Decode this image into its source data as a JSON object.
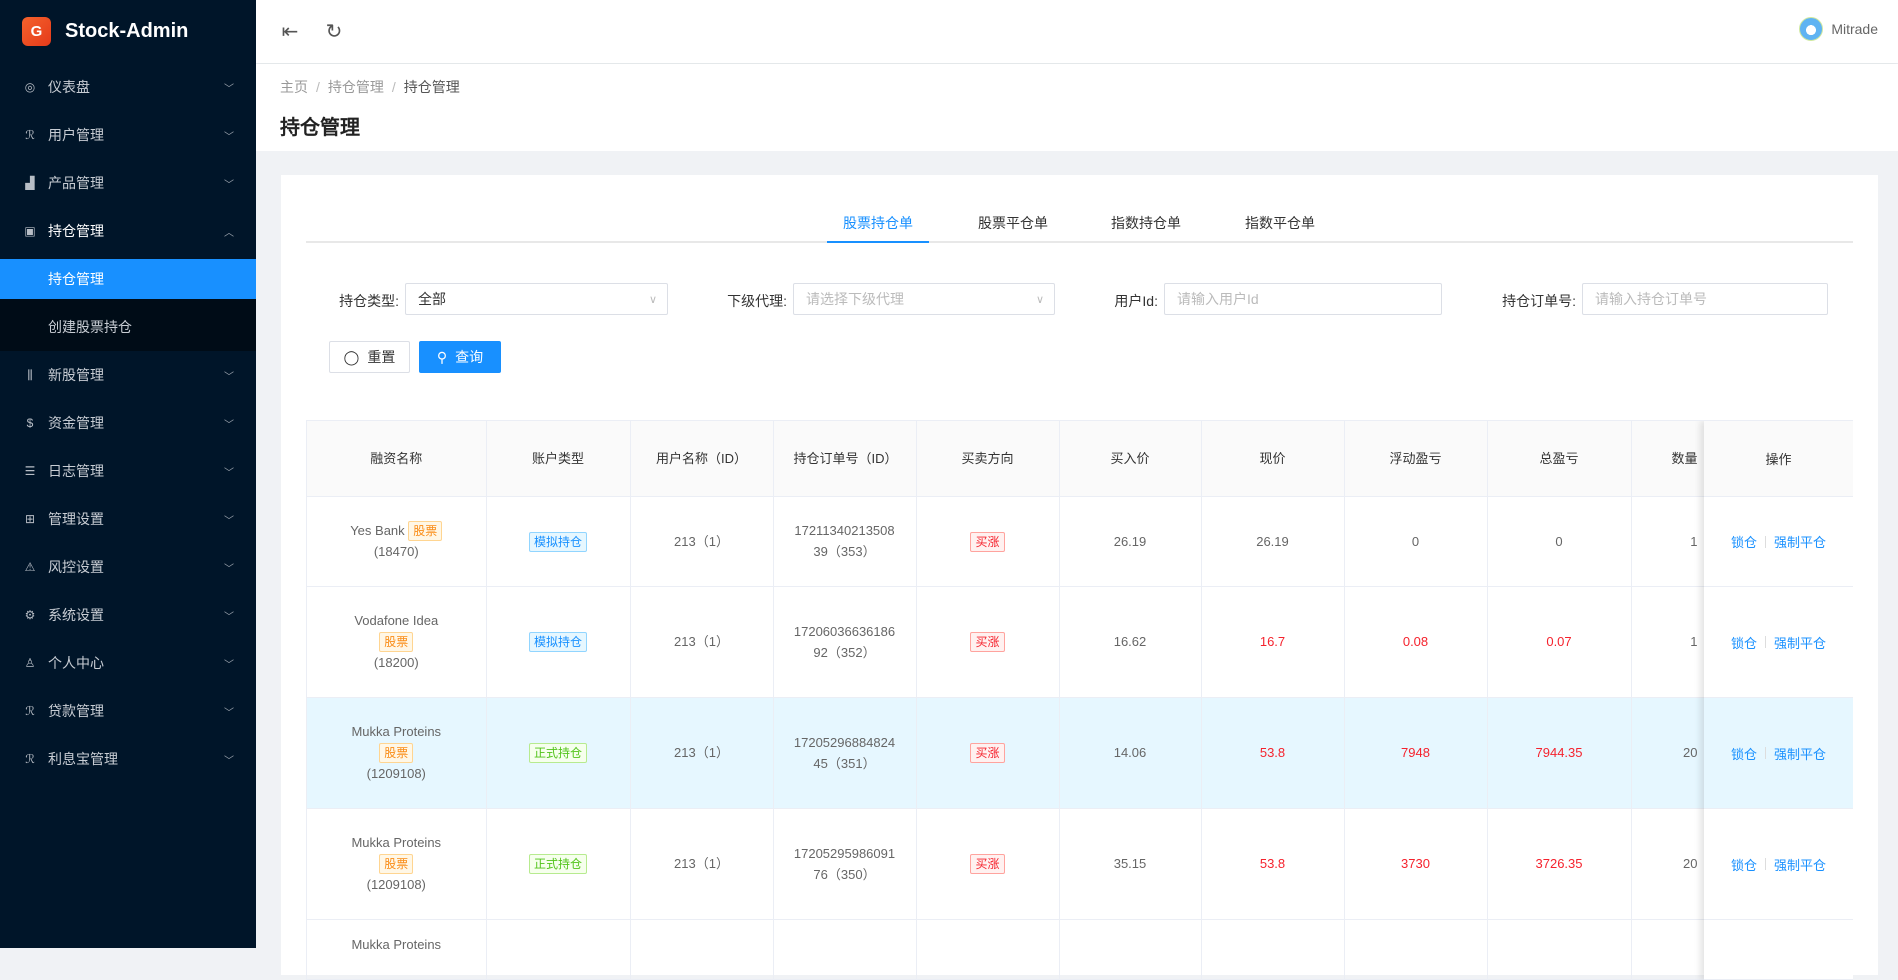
{
  "app": {
    "logo_text": "Stock-Admin",
    "logo_glyph": "G"
  },
  "sidebar": {
    "items": [
      {
        "label": "仪表盘",
        "icon": "dashboard-icon"
      },
      {
        "label": "用户管理",
        "icon": "user-group-icon"
      },
      {
        "label": "产品管理",
        "icon": "chart-icon"
      },
      {
        "label": "持仓管理",
        "icon": "position-icon",
        "open": true,
        "children": [
          {
            "label": "持仓管理",
            "active": true
          },
          {
            "label": "创建股票持仓"
          }
        ]
      },
      {
        "label": "新股管理",
        "icon": "sliders-icon"
      },
      {
        "label": "资金管理",
        "icon": "dollar-icon"
      },
      {
        "label": "日志管理",
        "icon": "log-icon"
      },
      {
        "label": "管理设置",
        "icon": "settings-box-icon"
      },
      {
        "label": "风控设置",
        "icon": "warning-icon"
      },
      {
        "label": "系统设置",
        "icon": "gear-icon"
      },
      {
        "label": "个人中心",
        "icon": "person-icon"
      },
      {
        "label": "贷款管理",
        "icon": "loan-icon"
      },
      {
        "label": "利息宝管理",
        "icon": "interest-icon"
      }
    ]
  },
  "topbar": {
    "username": "Mitrade"
  },
  "breadcrumb": [
    "主页",
    "持仓管理",
    "持仓管理"
  ],
  "page_title": "持仓管理",
  "tabs": [
    {
      "label": "股票持仓单",
      "active": true
    },
    {
      "label": "股票平仓单"
    },
    {
      "label": "指数持仓单"
    },
    {
      "label": "指数平仓单"
    }
  ],
  "filters": {
    "type_label": "持仓类型:",
    "type_value": "全部",
    "agent_label": "下级代理:",
    "agent_placeholder": "请选择下级代理",
    "userid_label": "用户Id:",
    "userid_placeholder": "请输入用户Id",
    "order_label": "持仓订单号:",
    "order_placeholder": "请输入持仓订单号",
    "reset": "重置",
    "query": "查询"
  },
  "table": {
    "columns": [
      "融资名称",
      "账户类型",
      "用户名称（ID）",
      "持仓订单号（ID）",
      "买卖方向",
      "买入价",
      "现价",
      "浮动盈亏",
      "总盈亏",
      "数量",
      "操作"
    ],
    "actions": {
      "lock": "锁仓",
      "force_close": "强制平仓"
    },
    "rows": [
      {
        "name": "Yes Bank",
        "tag": "股票",
        "code": "(18470)",
        "account": "模拟持仓",
        "account_kind": "sim",
        "user": "213（1）",
        "order1": "17211340213508",
        "order2": "39（353）",
        "direction": "买涨",
        "buy": "26.19",
        "price": "26.19",
        "float_pl": "0",
        "total_pl": "0",
        "qty": "1",
        "red": false,
        "highlight": false
      },
      {
        "name": "Vodafone Idea",
        "tag": "股票",
        "code": "(18200)",
        "account": "模拟持仓",
        "account_kind": "sim",
        "user": "213（1）",
        "order1": "17206036636186",
        "order2": "92（352）",
        "direction": "买涨",
        "buy": "16.62",
        "price": "16.7",
        "float_pl": "0.08",
        "total_pl": "0.07",
        "qty": "1",
        "red": true,
        "highlight": false
      },
      {
        "name": "Mukka Proteins",
        "tag": "股票",
        "code": "(1209108)",
        "account": "正式持仓",
        "account_kind": "real",
        "user": "213（1）",
        "order1": "17205296884824",
        "order2": "45（351）",
        "direction": "买涨",
        "buy": "14.06",
        "price": "53.8",
        "float_pl": "7948",
        "total_pl": "7944.35",
        "qty": "20",
        "red": true,
        "highlight": true
      },
      {
        "name": "Mukka Proteins",
        "tag": "股票",
        "code": "(1209108)",
        "account": "正式持仓",
        "account_kind": "real",
        "user": "213（1）",
        "order1": "17205295986091",
        "order2": "76（350）",
        "direction": "买涨",
        "buy": "35.15",
        "price": "53.8",
        "float_pl": "3730",
        "total_pl": "3726.35",
        "qty": "20",
        "red": true,
        "highlight": false
      },
      {
        "name": "Mukka Proteins",
        "partial": true
      }
    ]
  },
  "colors": {
    "sidebar_bg": "#001529",
    "accent": "#1890ff",
    "loss_gain_red": "#f5222d",
    "row_highlight": "#e6f7ff"
  }
}
